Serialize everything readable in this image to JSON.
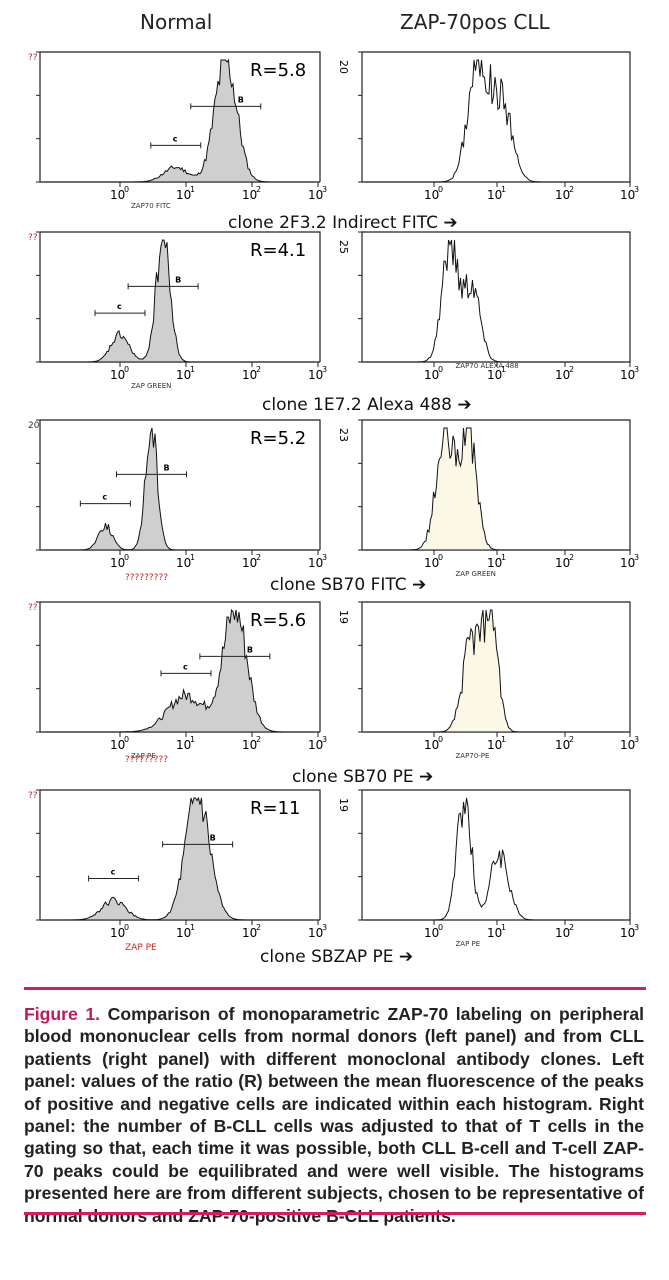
{
  "headers": {
    "left": "Normal",
    "right": "ZAP-70pos CLL"
  },
  "ticks": [
    "10",
    "10",
    "10",
    "10"
  ],
  "tick_exps": [
    "0",
    "1",
    "2",
    "3"
  ],
  "panels": [
    {
      "ratio": "R=5.8",
      "clone_label": "clone 2F3.2 Indirect FITC",
      "left_axis_label": "ZAP70 FITC",
      "right_axis_label": "",
      "left_corner": "??",
      "right_ymax": "20",
      "gate_c": "c",
      "gate_b": "B",
      "left_red_label": "",
      "chart_data": {
        "type": "histogram",
        "x_scale": "log",
        "xlim": [
          0.1,
          1000
        ],
        "left": {
          "series": "Normal",
          "peaks": [
            {
              "x": 7,
              "rel_height": 0.12,
              "gate": "c"
            },
            {
              "x": 40,
              "rel_height": 1.0,
              "gate": "B"
            }
          ],
          "ratio_R": 5.8
        },
        "right": {
          "series": "ZAP-70pos CLL",
          "ymax": 20,
          "peaks": [
            {
              "x": 5,
              "rel_height": 1.0
            },
            {
              "x": 12,
              "rel_height": 0.65
            }
          ]
        }
      }
    },
    {
      "ratio": "R=4.1",
      "clone_label": "clone 1E7.2 Alexa 488",
      "left_axis_label": "ZAP GREEN",
      "right_axis_label": "ZAP70 ALEXA 488",
      "left_corner": "??",
      "right_ymax": "25",
      "gate_c": "c",
      "gate_b": "B",
      "left_red_label": "",
      "chart_data": {
        "type": "histogram",
        "x_scale": "log",
        "xlim": [
          0.1,
          1000
        ],
        "left": {
          "series": "Normal",
          "peaks": [
            {
              "x": 1,
              "rel_height": 0.22,
              "gate": "c"
            },
            {
              "x": 4.5,
              "rel_height": 1.0,
              "gate": "B"
            }
          ],
          "ratio_R": 4.1
        },
        "right": {
          "series": "ZAP-70pos CLL",
          "ymax": 25,
          "peaks": [
            {
              "x": 1.8,
              "rel_height": 1.0
            },
            {
              "x": 4,
              "rel_height": 0.65
            }
          ]
        }
      }
    },
    {
      "ratio": "R=5.2",
      "clone_label": "clone SB70 FITC",
      "left_axis_label": "",
      "right_axis_label": "ZAP GREEN",
      "left_corner": "20",
      "right_ymax": "23",
      "gate_c": "c",
      "gate_b": "B",
      "left_red_label": "?????????",
      "chart_data": {
        "type": "histogram",
        "x_scale": "log",
        "xlim": [
          0.1,
          1000
        ],
        "left": {
          "series": "Normal",
          "peaks": [
            {
              "x": 0.6,
              "rel_height": 0.2,
              "gate": "c"
            },
            {
              "x": 3,
              "rel_height": 1.0,
              "gate": "B"
            }
          ],
          "ratio_R": 5.2
        },
        "right": {
          "series": "ZAP-70pos CLL",
          "ymax": 23,
          "peaks": [
            {
              "x": 1.5,
              "rel_height": 0.9
            },
            {
              "x": 3.5,
              "rel_height": 1.0
            }
          ]
        }
      }
    },
    {
      "ratio": "R=5.6",
      "clone_label": "clone SB70 PE",
      "left_axis_label": "ZAP PE",
      "right_axis_label": "ZAP70-PE",
      "left_corner": "??",
      "right_ymax": "19",
      "gate_c": "c",
      "gate_b": "B",
      "left_red_label": "?????????",
      "chart_data": {
        "type": "histogram",
        "x_scale": "log",
        "xlim": [
          0.1,
          1000
        ],
        "left": {
          "series": "Normal",
          "peaks": [
            {
              "x": 10,
              "rel_height": 0.3,
              "gate": "c"
            },
            {
              "x": 55,
              "rel_height": 1.0,
              "gate": "B"
            }
          ],
          "ratio_R": 5.6
        },
        "right": {
          "series": "ZAP-70pos CLL",
          "ymax": 19,
          "peaks": [
            {
              "x": 4,
              "rel_height": 0.75
            },
            {
              "x": 8,
              "rel_height": 1.0
            }
          ]
        }
      }
    },
    {
      "ratio": "R=11",
      "clone_label": "clone SBZAP PE",
      "left_axis_label": "",
      "right_axis_label": "ZAP PE",
      "left_corner": "??",
      "right_ymax": "19",
      "gate_c": "c",
      "gate_b": "B",
      "left_red_label": "ZAP PE",
      "chart_data": {
        "type": "histogram",
        "x_scale": "log",
        "xlim": [
          0.1,
          1000
        ],
        "left": {
          "series": "Normal",
          "peaks": [
            {
              "x": 0.8,
              "rel_height": 0.16,
              "gate": "c"
            },
            {
              "x": 15,
              "rel_height": 1.0,
              "gate": "B"
            }
          ],
          "ratio_R": 11
        },
        "right": {
          "series": "ZAP-70pos CLL",
          "ymax": 19,
          "peaks": [
            {
              "x": 3,
              "rel_height": 1.0
            },
            {
              "x": 11,
              "rel_height": 0.55
            }
          ]
        }
      }
    }
  ],
  "caption": {
    "label": "Figure 1.",
    "text": "Comparison of monoparametric ZAP-70 labeling on peripheral blood mononuclear cells from normal donors (left panel) and from CLL patients (right panel) with different monoclonal antibody clones. Left panel: values of the ratio (R) between the mean fluorescence of the peaks of positive and negative cells are indicated within each histogram. Right panel: the number of B-CLL cells was adjusted to that of T cells in the gating so that, each time it was possible, both CLL B-cell and T-cell ZAP-70 peaks could be equilibrated and were well visible. The histograms presented here are from different subjects, chosen to be representative of normal donors and ZAP-70-positive B-CLL patients."
  },
  "colors": {
    "caption_label": "#c2185b",
    "rule": "#d81b60",
    "fill_left": "#cfcfcf",
    "fill_right": "#fbf8e6"
  }
}
